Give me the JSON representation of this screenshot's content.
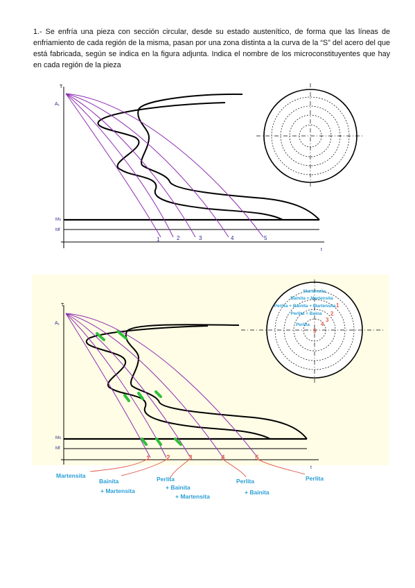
{
  "question": "1.- Se enfría una pieza con sección circular, desde su estado austenítico, de forma que las líneas de enfriamiento de cada región de la misma, pasan por una zona distinta a la curva de la “S” del acero del que está fabricada, según se indica en la figura adjunta. Indica el nombre de los microconstituyentes que hay en cada región de la pieza",
  "figure1": {
    "y_axis": "T",
    "a1": "A₁",
    "ms": "Ms",
    "mf": "Mf",
    "x_axis": "t",
    "curve_numbers": [
      "1",
      "2",
      "3",
      "4",
      "5"
    ]
  },
  "figure2": {
    "y_axis": "T",
    "a1": "A₁",
    "ms": "Ms",
    "mf": "Mf",
    "x_axis": "t",
    "curve_numbers": [
      "1",
      "2",
      "3",
      "4",
      "5"
    ],
    "results": [
      {
        "lines": [
          "Martensita"
        ]
      },
      {
        "lines": [
          "Bainita",
          "+ Martensita"
        ]
      },
      {
        "lines": [
          "Perlita",
          "+ Bainita",
          "+ Martensita"
        ]
      },
      {
        "lines": [
          "Perlita",
          "+ Bainita"
        ]
      },
      {
        "lines": [
          "Perlita"
        ]
      }
    ],
    "circle_labels": [
      "Martensita",
      "Bainita + Martensita",
      "Perlita + Bainita + Martensita",
      "Perlita + Baina",
      "Perlita"
    ],
    "circle_numbers": [
      "1",
      "2",
      "3",
      "4",
      "5"
    ]
  },
  "colors": {
    "purple": "#8e2bb0",
    "navy": "#2a2a8c",
    "green": "#2fbf3a",
    "red": "#e06050",
    "blue": "#2a9fd6",
    "bg_yellow": "#fffde6"
  }
}
